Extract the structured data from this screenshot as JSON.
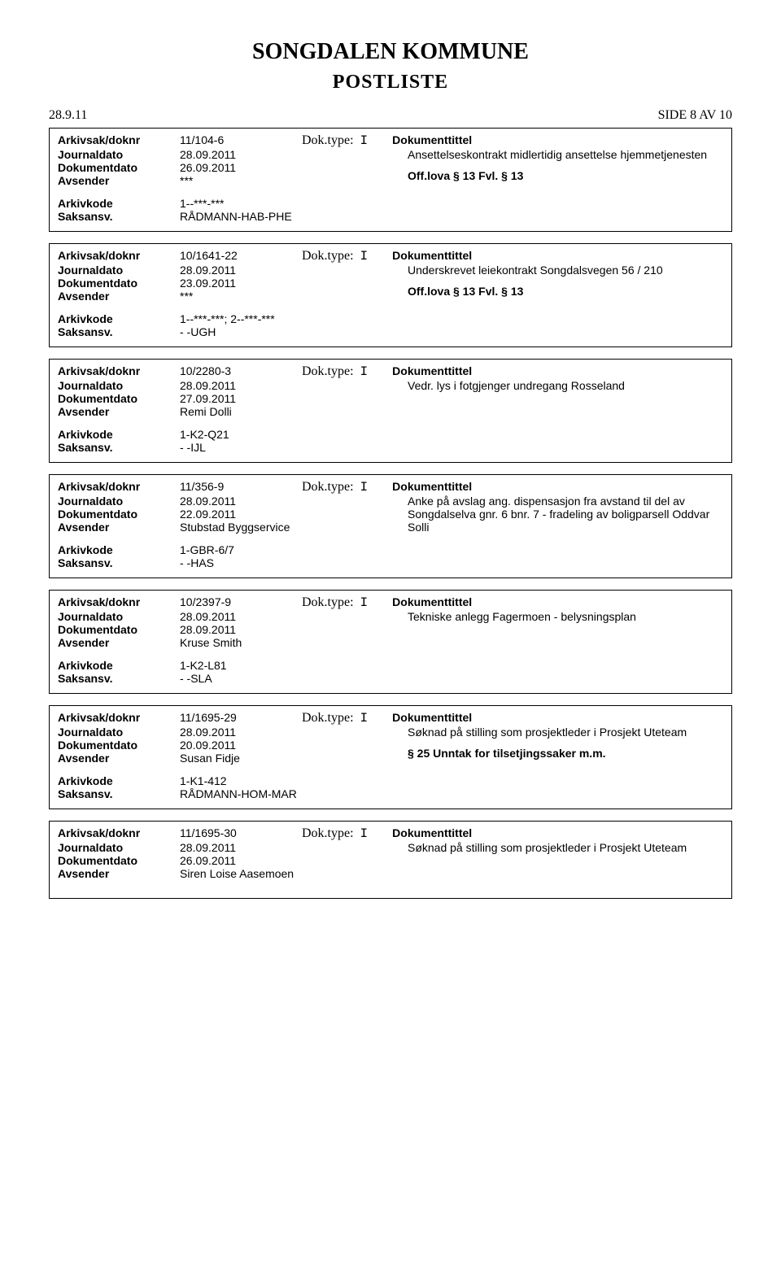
{
  "header": {
    "title": "SONGDALEN KOMMUNE",
    "subtitle": "POSTLISTE"
  },
  "topline": {
    "date": "28.9.11",
    "page": "SIDE 8 AV 10"
  },
  "entries": [
    {
      "arkivsak_doknr": "11/104-6",
      "doktype": "I",
      "journaldato": "28.09.2011",
      "dokumentdato": "26.09.2011",
      "avsender": "***",
      "arkivkode": "1--***-***",
      "saksansv": "RÅDMANN-HAB-PHE",
      "title": "Ansettelseskontrakt midlertidig ansettelse hjemmetjenesten",
      "restriction": "Off.lova § 13 Fvl. § 13"
    },
    {
      "arkivsak_doknr": "10/1641-22",
      "doktype": "I",
      "journaldato": "28.09.2011",
      "dokumentdato": "23.09.2011",
      "avsender": "***",
      "arkivkode": "1--***-***; 2--***-***",
      "saksansv": "- -UGH",
      "title": "Underskrevet leiekontrakt Songdalsvegen 56 / 210",
      "restriction": "Off.lova § 13 Fvl. § 13"
    },
    {
      "arkivsak_doknr": "10/2280-3",
      "doktype": "I",
      "journaldato": "28.09.2011",
      "dokumentdato": "27.09.2011",
      "avsender": "Remi Dolli",
      "arkivkode": "1-K2-Q21",
      "saksansv": "- -IJL",
      "title": "Vedr. lys i fotgjenger undregang Rosseland",
      "restriction": ""
    },
    {
      "arkivsak_doknr": "11/356-9",
      "doktype": "I",
      "journaldato": "28.09.2011",
      "dokumentdato": "22.09.2011",
      "avsender": "Stubstad Byggservice",
      "arkivkode": "1-GBR-6/7",
      "saksansv": "- -HAS",
      "title": "Anke på avslag ang. dispensasjon fra avstand til del av Songdalselva gnr. 6 bnr. 7 - fradeling av boligparsell Oddvar Solli",
      "restriction": ""
    },
    {
      "arkivsak_doknr": "10/2397-9",
      "doktype": "I",
      "journaldato": "28.09.2011",
      "dokumentdato": "28.09.2011",
      "avsender": "Kruse Smith",
      "arkivkode": "1-K2-L81",
      "saksansv": "- -SLA",
      "title": "Tekniske anlegg Fagermoen - belysningsplan",
      "restriction": ""
    },
    {
      "arkivsak_doknr": "11/1695-29",
      "doktype": "I",
      "journaldato": "28.09.2011",
      "dokumentdato": "20.09.2011",
      "avsender": "Susan Fidje",
      "arkivkode": "1-K1-412",
      "saksansv": "RÅDMANN-HOM-MAR",
      "title": "Søknad på stilling som prosjektleder i Prosjekt Uteteam",
      "restriction": "§ 25 Unntak for tilsetjingssaker m.m."
    },
    {
      "arkivsak_doknr": "11/1695-30",
      "doktype": "I",
      "journaldato": "28.09.2011",
      "dokumentdato": "26.09.2011",
      "avsender": "Siren Loise Aasemoen",
      "arkivkode": "",
      "saksansv": "",
      "title": "Søknad på stilling som prosjektleder i Prosjekt Uteteam",
      "restriction": ""
    }
  ],
  "labels": {
    "arkivsak_doknr": "Arkivsak/doknr",
    "doktype": "Dok.type:",
    "dokumenttittel": "Dokumenttittel",
    "journaldato": "Journaldato",
    "dokumentdato": "Dokumentdato",
    "avsender": "Avsender",
    "arkivkode": "Arkivkode",
    "saksansv": "Saksansv."
  }
}
